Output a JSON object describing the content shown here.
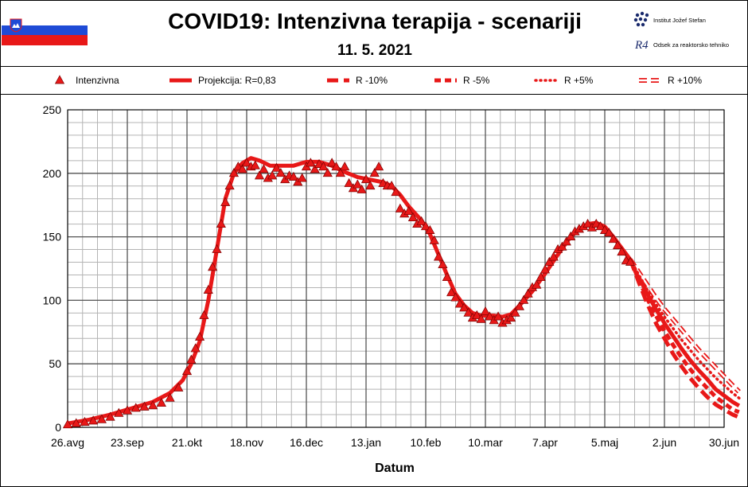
{
  "header": {
    "title": "COVID19: Intenzivna terapija - scenariji",
    "date": "11. 5. 2021",
    "logo_line1": "Institut Jožef Stefan",
    "logo_mark": "R4",
    "logo_line2": "Odsek za reaktorsko tehniko"
  },
  "colors": {
    "data": "#e81818",
    "flag": [
      "#ffffff",
      "#1f4bd6",
      "#e81818"
    ]
  },
  "chart_data": {
    "type": "line",
    "title": "COVID19: Intenzivna terapija - scenariji",
    "subtitle": "11. 5. 2021",
    "xlabel": "Datum",
    "ylabel": "",
    "x_range": [
      "2020-08-26",
      "2021-06-30"
    ],
    "ylim": [
      0,
      250
    ],
    "yticks": [
      0,
      50,
      100,
      150,
      200,
      250
    ],
    "xticks": [
      "26.avg",
      "23.sep",
      "21.okt",
      "18.nov",
      "16.dec",
      "13.jan",
      "10.feb",
      "10.mar",
      "7.apr",
      "5.maj",
      "2.jun",
      "30.jun"
    ],
    "grid": true,
    "legend_position": "top",
    "legend": [
      "Intenzivna",
      "Projekcija: R=0,83",
      "R -10%",
      "R -5%",
      "R +5%",
      "R +10%"
    ],
    "series": [
      {
        "name": "Intenzivna",
        "style": "triangle-markers",
        "points": [
          [
            0,
            2
          ],
          [
            4,
            3
          ],
          [
            8,
            4
          ],
          [
            12,
            5
          ],
          [
            16,
            6
          ],
          [
            20,
            8
          ],
          [
            24,
            11
          ],
          [
            28,
            13
          ],
          [
            32,
            15
          ],
          [
            36,
            16
          ],
          [
            40,
            17
          ],
          [
            44,
            19
          ],
          [
            48,
            23
          ],
          [
            52,
            31
          ],
          [
            56,
            44
          ],
          [
            58,
            53
          ],
          [
            60,
            62
          ],
          [
            62,
            71
          ],
          [
            64,
            88
          ],
          [
            66,
            108
          ],
          [
            68,
            126
          ],
          [
            70,
            140
          ],
          [
            72,
            160
          ],
          [
            74,
            177
          ],
          [
            76,
            190
          ],
          [
            78,
            200
          ],
          [
            80,
            205
          ],
          [
            82,
            203
          ],
          [
            84,
            208
          ],
          [
            86,
            205
          ],
          [
            88,
            206
          ],
          [
            90,
            198
          ],
          [
            92,
            203
          ],
          [
            94,
            196
          ],
          [
            96,
            198
          ],
          [
            98,
            204
          ],
          [
            100,
            200
          ],
          [
            102,
            195
          ],
          [
            104,
            198
          ],
          [
            106,
            197
          ],
          [
            108,
            193
          ],
          [
            110,
            196
          ],
          [
            112,
            205
          ],
          [
            114,
            208
          ],
          [
            116,
            203
          ],
          [
            118,
            207
          ],
          [
            120,
            205
          ],
          [
            122,
            200
          ],
          [
            124,
            208
          ],
          [
            126,
            205
          ],
          [
            128,
            200
          ],
          [
            130,
            205
          ],
          [
            132,
            192
          ],
          [
            134,
            188
          ],
          [
            136,
            191
          ],
          [
            138,
            187
          ],
          [
            140,
            195
          ],
          [
            142,
            190
          ],
          [
            144,
            200
          ],
          [
            146,
            205
          ],
          [
            148,
            192
          ],
          [
            150,
            190
          ],
          [
            152,
            190
          ],
          [
            154,
            185
          ],
          [
            156,
            172
          ],
          [
            158,
            168
          ],
          [
            160,
            170
          ],
          [
            162,
            165
          ],
          [
            164,
            160
          ],
          [
            166,
            162
          ],
          [
            168,
            158
          ],
          [
            170,
            155
          ],
          [
            172,
            147
          ],
          [
            174,
            134
          ],
          [
            176,
            128
          ],
          [
            178,
            118
          ],
          [
            180,
            106
          ],
          [
            182,
            102
          ],
          [
            184,
            97
          ],
          [
            186,
            94
          ],
          [
            188,
            90
          ],
          [
            190,
            86
          ],
          [
            192,
            88
          ],
          [
            194,
            85
          ],
          [
            196,
            91
          ],
          [
            198,
            87
          ],
          [
            200,
            84
          ],
          [
            202,
            87
          ],
          [
            204,
            82
          ],
          [
            206,
            84
          ],
          [
            208,
            86
          ],
          [
            210,
            90
          ],
          [
            212,
            95
          ],
          [
            214,
            100
          ],
          [
            216,
            105
          ],
          [
            218,
            110
          ],
          [
            220,
            112
          ],
          [
            222,
            118
          ],
          [
            224,
            124
          ],
          [
            226,
            130
          ],
          [
            228,
            134
          ],
          [
            230,
            140
          ],
          [
            232,
            142
          ],
          [
            234,
            146
          ],
          [
            236,
            150
          ],
          [
            238,
            154
          ],
          [
            240,
            156
          ],
          [
            242,
            158
          ],
          [
            244,
            160
          ],
          [
            246,
            157
          ],
          [
            248,
            160
          ],
          [
            250,
            158
          ],
          [
            252,
            155
          ],
          [
            254,
            153
          ],
          [
            256,
            148
          ],
          [
            258,
            143
          ],
          [
            260,
            138
          ],
          [
            262,
            131
          ],
          [
            264,
            130
          ]
        ]
      },
      {
        "name": "Projekcija: R=0,83",
        "style": "solid",
        "points": [
          [
            0,
            3
          ],
          [
            10,
            6
          ],
          [
            20,
            10
          ],
          [
            30,
            15
          ],
          [
            40,
            20
          ],
          [
            48,
            27
          ],
          [
            54,
            37
          ],
          [
            58,
            50
          ],
          [
            62,
            68
          ],
          [
            66,
            100
          ],
          [
            70,
            140
          ],
          [
            74,
            180
          ],
          [
            78,
            200
          ],
          [
            82,
            208
          ],
          [
            86,
            212
          ],
          [
            90,
            210
          ],
          [
            95,
            206
          ],
          [
            100,
            206
          ],
          [
            106,
            206
          ],
          [
            112,
            209
          ],
          [
            118,
            209
          ],
          [
            124,
            206
          ],
          [
            130,
            201
          ],
          [
            136,
            197
          ],
          [
            142,
            195
          ],
          [
            148,
            193
          ],
          [
            152,
            190
          ],
          [
            156,
            183
          ],
          [
            160,
            174
          ],
          [
            166,
            163
          ],
          [
            170,
            152
          ],
          [
            174,
            136
          ],
          [
            178,
            120
          ],
          [
            182,
            105
          ],
          [
            186,
            96
          ],
          [
            190,
            90
          ],
          [
            194,
            88
          ],
          [
            200,
            88
          ],
          [
            204,
            87
          ],
          [
            208,
            89
          ],
          [
            212,
            96
          ],
          [
            218,
            107
          ],
          [
            224,
            121
          ],
          [
            230,
            136
          ],
          [
            236,
            150
          ],
          [
            240,
            156
          ],
          [
            244,
            160
          ],
          [
            248,
            161
          ],
          [
            252,
            158
          ],
          [
            256,
            150
          ],
          [
            260,
            141
          ],
          [
            264,
            132
          ],
          [
            268,
            118
          ],
          [
            272,
            105
          ],
          [
            276,
            93
          ],
          [
            280,
            82
          ],
          [
            284,
            72
          ],
          [
            288,
            62
          ],
          [
            292,
            53
          ],
          [
            296,
            45
          ],
          [
            300,
            38
          ],
          [
            304,
            30
          ],
          [
            308,
            25
          ],
          [
            312,
            20
          ],
          [
            315,
            17
          ]
        ]
      },
      {
        "name": "R -10%",
        "style": "long-dash",
        "points": [
          [
            264,
            132
          ],
          [
            268,
            114
          ],
          [
            272,
            97
          ],
          [
            276,
            82
          ],
          [
            280,
            70
          ],
          [
            284,
            58
          ],
          [
            288,
            48
          ],
          [
            292,
            39
          ],
          [
            296,
            31
          ],
          [
            300,
            24
          ],
          [
            304,
            18
          ],
          [
            308,
            14
          ],
          [
            312,
            10
          ],
          [
            315,
            8
          ]
        ]
      },
      {
        "name": "R -5%",
        "style": "dash",
        "points": [
          [
            264,
            132
          ],
          [
            268,
            116
          ],
          [
            272,
            101
          ],
          [
            276,
            88
          ],
          [
            280,
            76
          ],
          [
            284,
            65
          ],
          [
            288,
            55
          ],
          [
            292,
            46
          ],
          [
            296,
            38
          ],
          [
            300,
            31
          ],
          [
            304,
            24
          ],
          [
            308,
            19
          ],
          [
            312,
            14
          ],
          [
            315,
            12
          ]
        ]
      },
      {
        "name": "R +5%",
        "style": "dotted",
        "points": [
          [
            264,
            132
          ],
          [
            268,
            120
          ],
          [
            272,
            108
          ],
          [
            276,
            97
          ],
          [
            280,
            87
          ],
          [
            284,
            78
          ],
          [
            288,
            69
          ],
          [
            292,
            61
          ],
          [
            296,
            53
          ],
          [
            300,
            46
          ],
          [
            304,
            39
          ],
          [
            308,
            33
          ],
          [
            312,
            27
          ],
          [
            315,
            23
          ]
        ]
      },
      {
        "name": "R +10%",
        "style": "double",
        "points": [
          [
            264,
            132
          ],
          [
            268,
            122
          ],
          [
            272,
            112
          ],
          [
            276,
            102
          ],
          [
            280,
            93
          ],
          [
            284,
            85
          ],
          [
            288,
            77
          ],
          [
            292,
            69
          ],
          [
            296,
            61
          ],
          [
            300,
            54
          ],
          [
            304,
            47
          ],
          [
            308,
            40
          ],
          [
            312,
            33
          ],
          [
            315,
            28
          ]
        ]
      }
    ]
  }
}
